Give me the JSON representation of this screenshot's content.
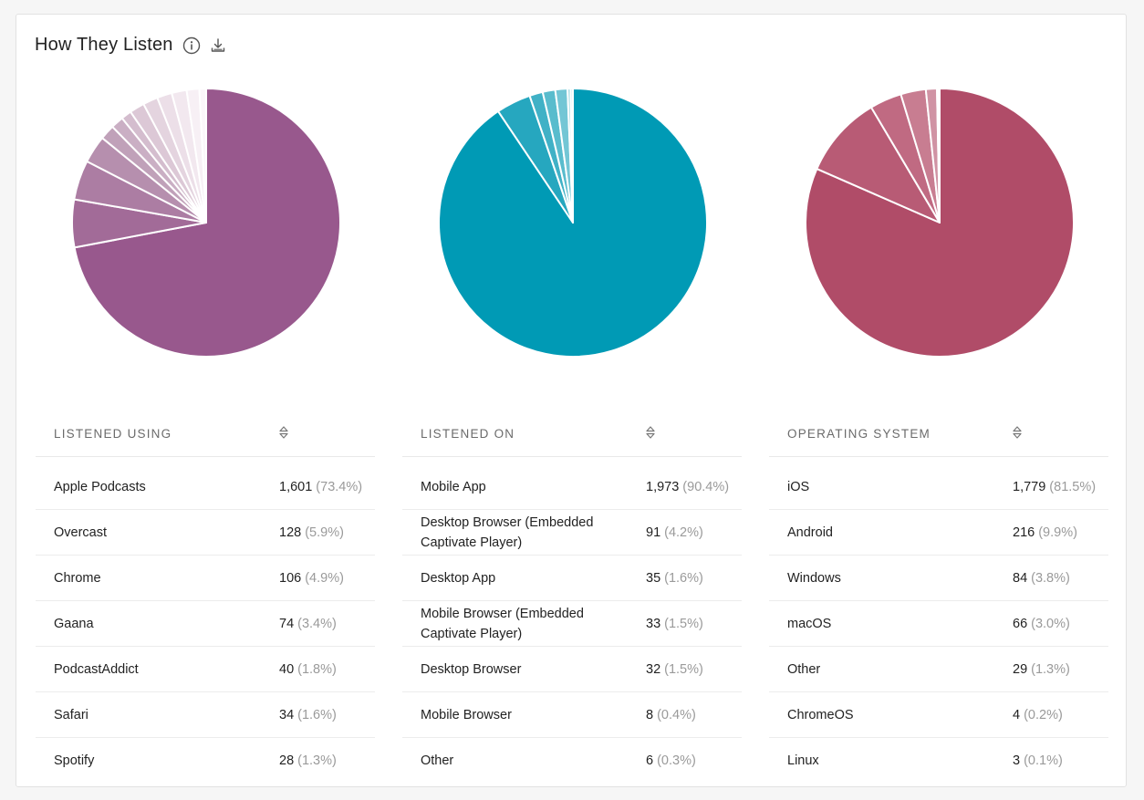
{
  "header": {
    "title": "How They Listen",
    "info_icon": "info-circle-icon",
    "download_icon": "download-icon"
  },
  "chart_data": [
    {
      "type": "pie",
      "title": "",
      "color": "#98588d",
      "categories": [
        "Apple Podcasts",
        "Overcast",
        "Chrome",
        "Gaana",
        "PodcastAddict",
        "Safari",
        "Spotify",
        "",
        "",
        "",
        "",
        "",
        ""
      ],
      "values": [
        1601,
        128,
        106,
        74,
        40,
        34,
        28,
        40,
        40,
        40,
        40,
        34,
        18
      ],
      "slice_colors": [
        "#98588d",
        "#a26b98",
        "#ac7da3",
        "#b68fae",
        "#c0a1b9",
        "#caafc4",
        "#d4bdce",
        "#dcc8d6",
        "#e4d4df",
        "#ecdfe8",
        "#f2e8ef",
        "#f7f0f5",
        "#fbf7fa"
      ]
    },
    {
      "type": "pie",
      "title": "",
      "color": "#009ab5",
      "categories": [
        "Mobile App",
        "Desktop Browser (Embedded Captivate Player)",
        "Desktop App",
        "Mobile Browser (Embedded Captivate Player)",
        "Desktop Browser",
        "Mobile Browser",
        "Other"
      ],
      "values": [
        1973,
        91,
        35,
        33,
        32,
        8,
        6
      ],
      "slice_colors": [
        "#009ab5",
        "#26a7bf",
        "#40b1c6",
        "#59bccd",
        "#73c6d5",
        "#a2dae3",
        "#c9eaf0"
      ]
    },
    {
      "type": "pie",
      "title": "",
      "color": "#b04c68",
      "categories": [
        "iOS",
        "Android",
        "Windows",
        "macOS",
        "Other",
        "ChromeOS",
        "Linux"
      ],
      "values": [
        1779,
        216,
        84,
        66,
        29,
        4,
        3
      ],
      "slice_colors": [
        "#b04c68",
        "#b85b75",
        "#c06a82",
        "#c87d91",
        "#d093a4",
        "#dcb0bc",
        "#e8ccd4"
      ]
    }
  ],
  "tables": [
    {
      "header": "LISTENED USING",
      "sort_icon": "sort-arrows-icon",
      "rows": [
        {
          "label": "Apple Podcasts",
          "count": "1,601",
          "pct": "(73.4%)"
        },
        {
          "label": "Overcast",
          "count": "128",
          "pct": "(5.9%)"
        },
        {
          "label": "Chrome",
          "count": "106",
          "pct": "(4.9%)"
        },
        {
          "label": "Gaana",
          "count": "74",
          "pct": "(3.4%)"
        },
        {
          "label": "PodcastAddict",
          "count": "40",
          "pct": "(1.8%)"
        },
        {
          "label": "Safari",
          "count": "34",
          "pct": "(1.6%)"
        },
        {
          "label": "Spotify",
          "count": "28",
          "pct": "(1.3%)"
        }
      ]
    },
    {
      "header": "LISTENED ON",
      "sort_icon": "sort-arrows-icon",
      "rows": [
        {
          "label": "Mobile App",
          "count": "1,973",
          "pct": "(90.4%)"
        },
        {
          "label": "Desktop Browser (Embedded Captivate Player)",
          "count": "91",
          "pct": "(4.2%)"
        },
        {
          "label": "Desktop App",
          "count": "35",
          "pct": "(1.6%)"
        },
        {
          "label": "Mobile Browser (Embedded Captivate Player)",
          "count": "33",
          "pct": "(1.5%)"
        },
        {
          "label": "Desktop Browser",
          "count": "32",
          "pct": "(1.5%)"
        },
        {
          "label": "Mobile Browser",
          "count": "8",
          "pct": "(0.4%)"
        },
        {
          "label": "Other",
          "count": "6",
          "pct": "(0.3%)"
        }
      ]
    },
    {
      "header": "OPERATING SYSTEM",
      "sort_icon": "sort-arrows-icon",
      "rows": [
        {
          "label": "iOS",
          "count": "1,779",
          "pct": "(81.5%)"
        },
        {
          "label": "Android",
          "count": "216",
          "pct": "(9.9%)"
        },
        {
          "label": "Windows",
          "count": "84",
          "pct": "(3.8%)"
        },
        {
          "label": "macOS",
          "count": "66",
          "pct": "(3.0%)"
        },
        {
          "label": "Other",
          "count": "29",
          "pct": "(1.3%)"
        },
        {
          "label": "ChromeOS",
          "count": "4",
          "pct": "(0.2%)"
        },
        {
          "label": "Linux",
          "count": "3",
          "pct": "(0.1%)"
        }
      ]
    }
  ]
}
